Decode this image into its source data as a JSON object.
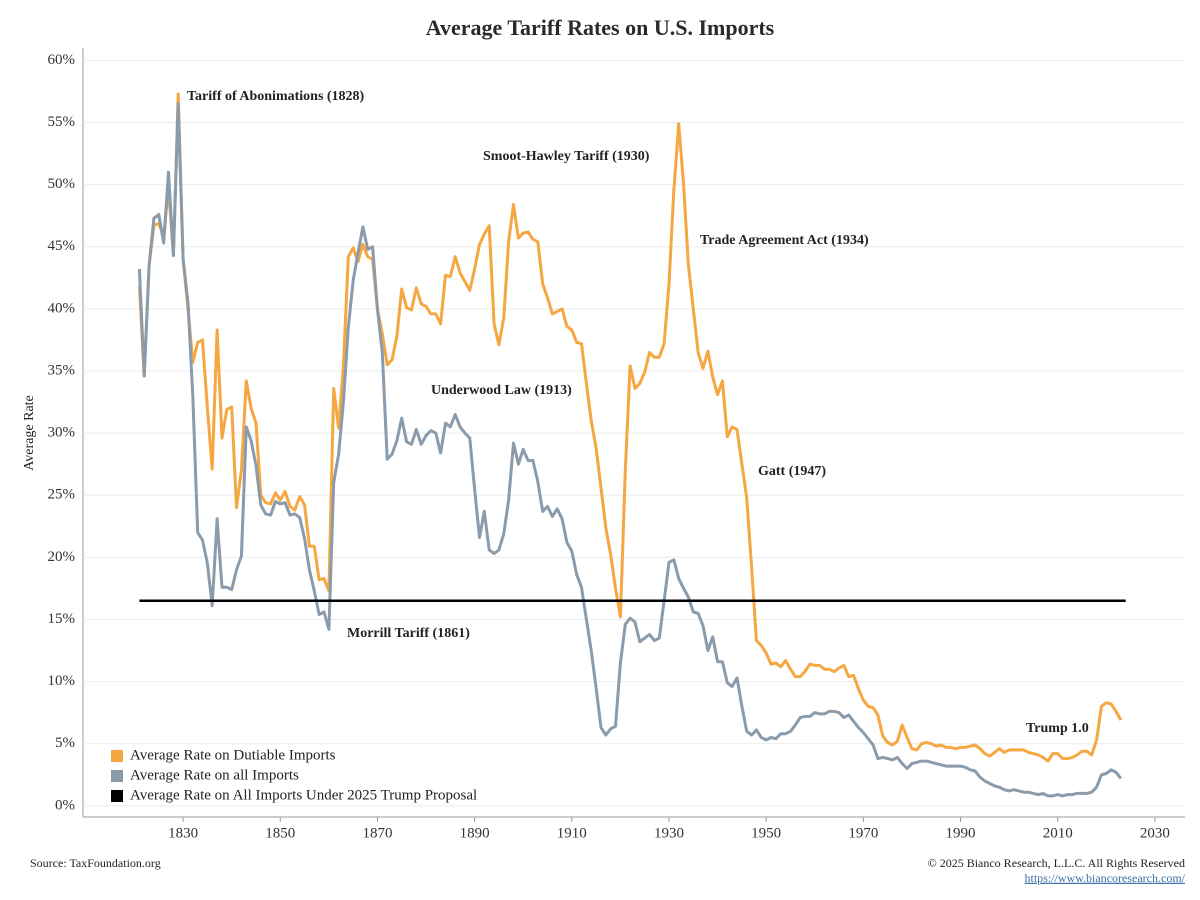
{
  "chart_data": {
    "type": "line",
    "title": "Average Tariff Rates on U.S. Imports",
    "y_axis_label": "Average Rate",
    "xlim": [
      1809.4,
      2036.2
    ],
    "ylim": [
      -0.9,
      61
    ],
    "xticks": [
      1830,
      1850,
      1870,
      1890,
      1910,
      1930,
      1950,
      1970,
      1990,
      2010,
      2030
    ],
    "yticks": [
      {
        "value": 0,
        "label": "0%"
      },
      {
        "value": 5,
        "label": "5%"
      },
      {
        "value": 10,
        "label": "10%"
      },
      {
        "value": 15,
        "label": "15%"
      },
      {
        "value": 20,
        "label": "20%"
      },
      {
        "value": 25,
        "label": "25%"
      },
      {
        "value": 30,
        "label": "30%"
      },
      {
        "value": 35,
        "label": "35%"
      },
      {
        "value": 40,
        "label": "40%"
      },
      {
        "value": 45,
        "label": "45%"
      },
      {
        "value": 50,
        "label": "50%"
      },
      {
        "value": 55,
        "label": "55%"
      },
      {
        "value": 60,
        "label": "60%"
      }
    ],
    "grid": true,
    "legend": "bottom-left",
    "series": [
      {
        "name": "Average Rate on Dutiable Imports",
        "color": "#f5a742",
        "x": [
          1821,
          1822,
          1823,
          1824,
          1825,
          1826,
          1827,
          1828,
          1829,
          1830,
          1831,
          1832,
          1833,
          1834,
          1835,
          1836,
          1837,
          1838,
          1839,
          1840,
          1841,
          1842,
          1843,
          1844,
          1845,
          1846,
          1847,
          1848,
          1849,
          1850,
          1851,
          1852,
          1853,
          1854,
          1855,
          1856,
          1857,
          1858,
          1859,
          1860,
          1861,
          1862,
          1863,
          1864,
          1865,
          1866,
          1867,
          1868,
          1869,
          1870,
          1871,
          1872,
          1873,
          1874,
          1875,
          1876,
          1877,
          1878,
          1879,
          1880,
          1881,
          1882,
          1883,
          1884,
          1885,
          1886,
          1887,
          1888,
          1889,
          1890,
          1891,
          1892,
          1893,
          1894,
          1895,
          1896,
          1897,
          1898,
          1899,
          1900,
          1901,
          1902,
          1903,
          1904,
          1905,
          1906,
          1907,
          1908,
          1909,
          1910,
          1911,
          1912,
          1913,
          1914,
          1915,
          1916,
          1917,
          1918,
          1919,
          1920,
          1921,
          1922,
          1923,
          1924,
          1925,
          1926,
          1927,
          1928,
          1929,
          1930,
          1931,
          1932,
          1933,
          1934,
          1935,
          1936,
          1937,
          1938,
          1939,
          1940,
          1941,
          1942,
          1943,
          1944,
          1945,
          1946,
          1947,
          1948,
          1949,
          1950,
          1951,
          1952,
          1953,
          1954,
          1955,
          1956,
          1957,
          1958,
          1959,
          1960,
          1961,
          1962,
          1963,
          1964,
          1965,
          1966,
          1967,
          1968,
          1969,
          1970,
          1971,
          1972,
          1973,
          1974,
          1975,
          1976,
          1977,
          1978,
          1979,
          1980,
          1981,
          1982,
          1983,
          1984,
          1985,
          1986,
          1987,
          1988,
          1989,
          1990,
          1991,
          1992,
          1993,
          1994,
          1995,
          1996,
          1997,
          1998,
          1999,
          2000,
          2001,
          2002,
          2003,
          2004,
          2005,
          2006,
          2007,
          2008,
          2009,
          2010,
          2011,
          2012,
          2013,
          2014,
          2015,
          2016,
          2017,
          2018,
          2019,
          2020,
          2021,
          2022,
          2023
        ],
        "values": [
          41.8,
          34.6,
          43.5,
          46.7,
          46.9,
          45.8,
          49.8,
          44.3,
          57.3,
          44,
          40,
          35.7,
          37.3,
          37.5,
          32,
          27.1,
          38.3,
          29.6,
          31.9,
          32.1,
          24,
          27,
          34.2,
          32,
          30.8,
          25,
          24.4,
          24.3,
          25.2,
          24.6,
          25.3,
          24.1,
          23.8,
          24.9,
          24.2,
          20.9,
          20.9,
          18.2,
          18.3,
          17.3,
          33.6,
          30.4,
          35.4,
          44.2,
          44.9,
          43.8,
          45.2,
          44.2,
          44,
          40,
          38,
          35.5,
          35.9,
          37.8,
          41.6,
          40.1,
          39.9,
          41.7,
          40.4,
          40.2,
          39.6,
          39.6,
          38.8,
          42.7,
          42.6,
          44.2,
          42.9,
          42.2,
          41.5,
          43.2,
          45.2,
          46,
          46.7,
          38.8,
          37.1,
          39.3,
          45.4,
          48.4,
          45.7,
          46.1,
          46.2,
          45.6,
          45.4,
          42,
          40.9,
          39.6,
          39.8,
          40,
          38.6,
          38.3,
          37.3,
          37.2,
          34,
          31,
          28.8,
          25.6,
          22.4,
          20.2,
          17.5,
          15.2,
          27,
          35.4,
          33.6,
          34,
          34.9,
          36.5,
          36.1,
          36.1,
          37.2,
          42,
          49.5,
          54.9,
          50,
          43.5,
          40,
          36.5,
          35.2,
          36.6,
          34.5,
          33.1,
          34.2,
          29.7,
          30.5,
          30.3,
          27.5,
          24.8,
          19.2,
          13.3,
          12.9,
          12.3,
          11.4,
          11.5,
          11.2,
          11.7,
          11,
          10.4,
          10.4,
          10.8,
          11.4,
          11.3,
          11.3,
          11,
          11,
          10.8,
          11.1,
          11.3,
          10.4,
          10.5,
          9.4,
          8.5,
          8,
          7.9,
          7.3,
          5.6,
          5.1,
          4.9,
          5.2,
          6.5,
          5.5,
          4.6,
          4.5,
          5,
          5.1,
          5,
          4.8,
          4.9,
          4.7,
          4.7,
          4.6,
          4.7,
          4.7,
          4.8,
          4.9,
          4.6,
          4.2,
          4,
          4.3,
          4.6,
          4.3,
          4.5,
          4.5,
          4.5,
          4.5,
          4.3,
          4.2,
          4.1,
          3.9,
          3.6,
          4.2,
          4.2,
          3.8,
          3.8,
          3.9,
          4.1,
          4.4,
          4.4,
          4.1,
          5.3,
          8,
          8.3,
          8.2,
          7.6,
          6.9
        ]
      },
      {
        "name": "Average Rate on all Imports",
        "color": "#8a9bab",
        "x": [
          1821,
          1822,
          1823,
          1824,
          1825,
          1826,
          1827,
          1828,
          1829,
          1830,
          1831,
          1832,
          1833,
          1834,
          1835,
          1836,
          1837,
          1838,
          1839,
          1840,
          1841,
          1842,
          1843,
          1844,
          1845,
          1846,
          1847,
          1848,
          1849,
          1850,
          1851,
          1852,
          1853,
          1854,
          1855,
          1856,
          1857,
          1858,
          1859,
          1860,
          1861,
          1862,
          1863,
          1864,
          1865,
          1866,
          1867,
          1868,
          1869,
          1870,
          1871,
          1872,
          1873,
          1874,
          1875,
          1876,
          1877,
          1878,
          1879,
          1880,
          1881,
          1882,
          1883,
          1884,
          1885,
          1886,
          1887,
          1888,
          1889,
          1890,
          1891,
          1892,
          1893,
          1894,
          1895,
          1896,
          1897,
          1898,
          1899,
          1900,
          1901,
          1902,
          1903,
          1904,
          1905,
          1906,
          1907,
          1908,
          1909,
          1910,
          1911,
          1912,
          1913,
          1914,
          1915,
          1916,
          1917,
          1918,
          1919,
          1920,
          1921,
          1922,
          1923,
          1924,
          1925,
          1926,
          1927,
          1928,
          1929,
          1930,
          1931,
          1932,
          1933,
          1934,
          1935,
          1936,
          1937,
          1938,
          1939,
          1940,
          1941,
          1942,
          1943,
          1944,
          1945,
          1946,
          1947,
          1948,
          1949,
          1950,
          1951,
          1952,
          1953,
          1954,
          1955,
          1956,
          1957,
          1958,
          1959,
          1960,
          1961,
          1962,
          1963,
          1964,
          1965,
          1966,
          1967,
          1968,
          1969,
          1970,
          1971,
          1972,
          1973,
          1974,
          1975,
          1976,
          1977,
          1978,
          1979,
          1980,
          1981,
          1982,
          1983,
          1984,
          1985,
          1986,
          1987,
          1988,
          1989,
          1990,
          1991,
          1992,
          1993,
          1994,
          1995,
          1996,
          1997,
          1998,
          1999,
          2000,
          2001,
          2002,
          2003,
          2004,
          2005,
          2006,
          2007,
          2008,
          2009,
          2010,
          2011,
          2012,
          2013,
          2014,
          2015,
          2016,
          2017,
          2018,
          2019,
          2020,
          2021,
          2022,
          2023
        ],
        "values": [
          43.2,
          34.6,
          43.5,
          47.3,
          47.6,
          45.3,
          51,
          44.3,
          56.5,
          44,
          40.5,
          33,
          22,
          21.4,
          19.5,
          16.1,
          23.1,
          17.6,
          17.6,
          17.4,
          19,
          20.1,
          30.5,
          29.4,
          27.4,
          24.2,
          23.5,
          23.4,
          24.5,
          24.3,
          24.4,
          23.4,
          23.5,
          23.2,
          21.5,
          19,
          17.3,
          15.4,
          15.6,
          14.2,
          26,
          28.3,
          32.5,
          38.5,
          42.3,
          44.5,
          46.6,
          44.8,
          45,
          40,
          36.5,
          27.9,
          28.3,
          29.4,
          31.2,
          29.3,
          29.1,
          30.3,
          29.1,
          29.8,
          30.2,
          30,
          28.4,
          30.8,
          30.5,
          31.5,
          30.5,
          30,
          29.6,
          25.5,
          21.6,
          23.7,
          20.6,
          20.3,
          20.6,
          21.9,
          24.6,
          29.2,
          27.5,
          28.7,
          27.8,
          27.8,
          26.1,
          23.7,
          24.1,
          23.3,
          23.9,
          23.1,
          21.2,
          20.5,
          18.6,
          17.6,
          15,
          12.5,
          9.5,
          6.3,
          5.7,
          6.2,
          6.4,
          11.5,
          14.6,
          15.1,
          14.8,
          13.2,
          13.5,
          13.8,
          13.3,
          13.5,
          16.5,
          19.6,
          19.8,
          18.3,
          17.5,
          16.8,
          15.6,
          15.5,
          14.5,
          12.5,
          13.6,
          11.6,
          11.6,
          9.9,
          9.6,
          10.3,
          8,
          6,
          5.7,
          6.1,
          5.5,
          5.3,
          5.5,
          5.4,
          5.8,
          5.8,
          6,
          6.5,
          7.1,
          7.2,
          7.2,
          7.5,
          7.4,
          7.4,
          7.6,
          7.6,
          7.5,
          7.1,
          7.3,
          6.8,
          6.3,
          5.9,
          5.4,
          4.9,
          3.8,
          3.9,
          3.8,
          3.7,
          3.9,
          3.4,
          3,
          3.4,
          3.5,
          3.6,
          3.6,
          3.5,
          3.4,
          3.3,
          3.2,
          3.2,
          3.2,
          3.2,
          3.1,
          2.9,
          2.8,
          2.3,
          2,
          1.8,
          1.6,
          1.5,
          1.3,
          1.2,
          1.3,
          1.2,
          1.1,
          1.1,
          1,
          0.9,
          1,
          0.8,
          0.8,
          0.9,
          0.8,
          0.9,
          0.9,
          1,
          1,
          1,
          1.1,
          1.5,
          2.5,
          2.6,
          2.9,
          2.7,
          2.2
        ]
      },
      {
        "name": "Average Rate on All Imports Under 2025 Trump Proposal",
        "color": "#000000",
        "x": [
          1821,
          2024
        ],
        "values": [
          16.5,
          16.5
        ]
      }
    ],
    "annotations": [
      "Tariff of Abonimations (1828)",
      "Smoot-Hawley Tariff (1930)",
      "Trade Agreement Act (1934)",
      "Underwood Law (1913)",
      "Gatt (1947)",
      "Morrill Tariff (1861)",
      "Trump 1.0"
    ],
    "source": "Source: TaxFoundation.org",
    "copyright": "© 2025 Bianco Research, L.L.C. All Rights Reserved",
    "url": "https://www.biancoresearch.com/"
  }
}
